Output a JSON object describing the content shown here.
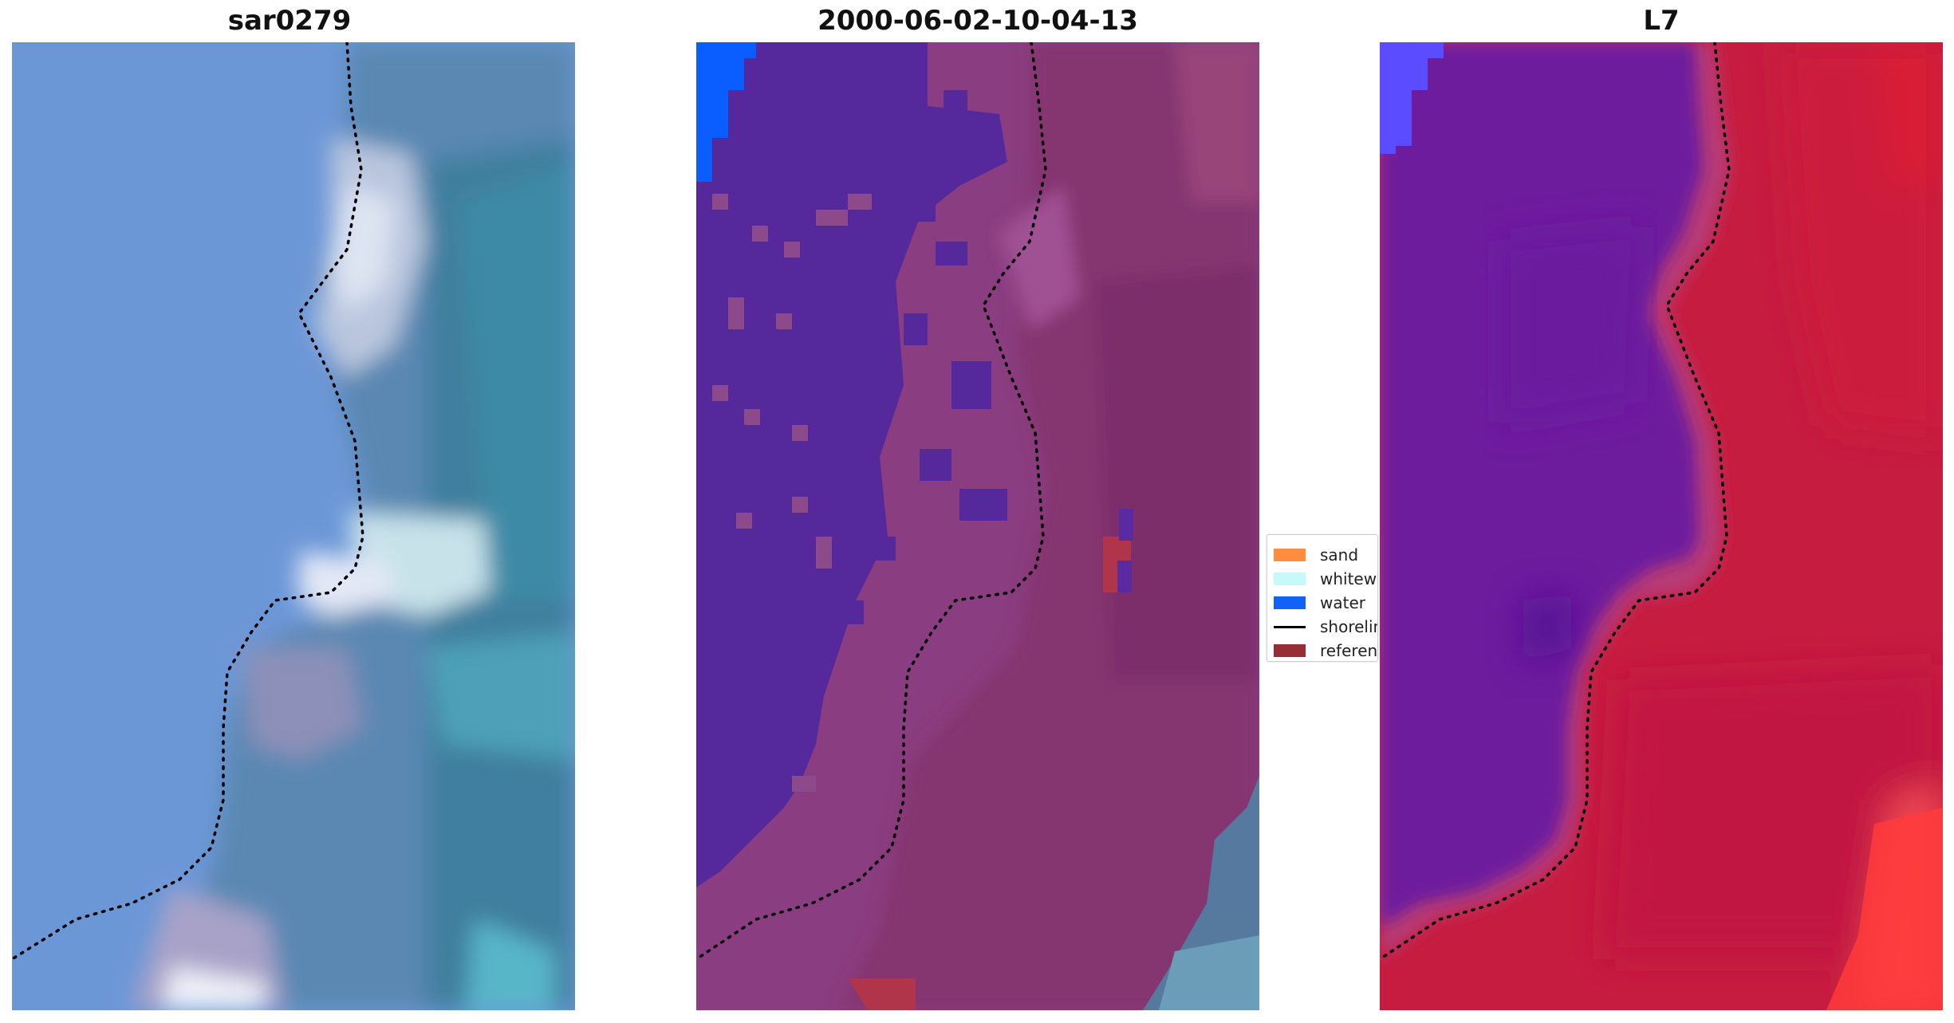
{
  "panels": [
    {
      "title": "sar0279",
      "kind": "rgb"
    },
    {
      "title": "2000-06-02-10-04-13",
      "kind": "classified"
    },
    {
      "title": "L7",
      "kind": "index"
    }
  ],
  "legend": {
    "items": [
      {
        "label": "sand",
        "type": "patch",
        "color": "#ff8c3f"
      },
      {
        "label": "whitewater",
        "type": "patch",
        "color": "#c7f9fb"
      },
      {
        "label": "water",
        "type": "patch",
        "color": "#1262f5"
      },
      {
        "label": "shoreline",
        "type": "line",
        "color": "#000000"
      },
      {
        "label": "reference",
        "type": "patch",
        "color": "#962d37"
      }
    ]
  },
  "colors": {
    "shoreline": "#000000",
    "rgb_sea": "#6b96d6",
    "rgb_land": "#4a7fa0",
    "rgb_whitewater": "#d8dff0",
    "class_water_land": "#55299c",
    "class_sand_land": "#8c3f80",
    "index_water": "#6b1fa0",
    "index_land": "#c4153c"
  }
}
